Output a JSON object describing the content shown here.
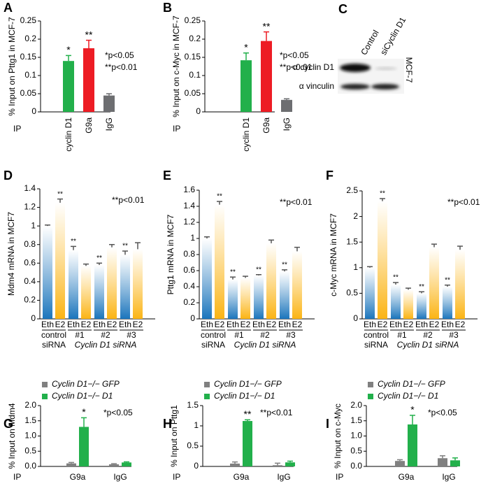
{
  "chart_data": [
    {
      "type": "bar",
      "panel": "A",
      "ylabel": "% Input on Pttg1 in MCF-7",
      "x_prefix": "IP",
      "categories": [
        "cyclin D1",
        "G9a",
        "IgG"
      ],
      "values": [
        0.14,
        0.175,
        0.045
      ],
      "errors": [
        0.015,
        0.022,
        0.005
      ],
      "colors": [
        "#22b04b",
        "#ed1c24",
        "#6d6e71"
      ],
      "annotations": [
        "*",
        "**",
        null
      ],
      "ylim": [
        0,
        0.25
      ],
      "yticks": [
        0,
        0.05,
        0.1,
        0.15,
        0.2,
        0.25
      ],
      "notes": [
        "*p<0.05",
        "**p<0.01"
      ]
    },
    {
      "type": "bar",
      "panel": "B",
      "ylabel": "% Input on c-Myc in MCF-7",
      "x_prefix": "IP",
      "categories": [
        "cyclin D1",
        "G9a",
        "IgG"
      ],
      "values": [
        0.142,
        0.195,
        0.033
      ],
      "errors": [
        0.02,
        0.025,
        0.003
      ],
      "colors": [
        "#22b04b",
        "#ed1c24",
        "#6d6e71"
      ],
      "annotations": [
        "*",
        "**",
        null
      ],
      "ylim": [
        0,
        0.25
      ],
      "yticks": [
        0,
        0.05,
        0.1,
        0.15,
        0.2,
        0.25
      ],
      "notes": [
        "*p<0.05",
        "**p<0.01"
      ]
    },
    {
      "type": "paired_bar",
      "panel": "D",
      "ylabel": "Mdm4 mRNA in MCF7",
      "categories": [
        "Eth",
        "E2",
        "Eth",
        "E2",
        "Eth",
        "E2",
        "Eth",
        "E2"
      ],
      "values": [
        1.0,
        1.25,
        0.74,
        0.57,
        0.58,
        0.77,
        0.69,
        0.75
      ],
      "errors": [
        0.01,
        0.04,
        0.04,
        0.02,
        0.02,
        0.03,
        0.04,
        0.07
      ],
      "colors": [
        "#1b75bc",
        "#fbb414",
        "#1b75bc",
        "#fbb414",
        "#1b75bc",
        "#fbb414",
        "#1b75bc",
        "#fbb414"
      ],
      "annotations": [
        null,
        "**",
        "**",
        null,
        "**",
        null,
        "**",
        null
      ],
      "groups": [
        "control",
        "#1",
        "#2",
        "#3"
      ],
      "group_captions": [
        "siRNA",
        "Cyclin D1 siRNA"
      ],
      "ylim": [
        0,
        1.4
      ],
      "yticks": [
        0,
        0.2,
        0.4,
        0.6,
        0.8,
        1,
        1.2,
        1.4
      ],
      "notes": [
        "**p<0.01"
      ]
    },
    {
      "type": "paired_bar",
      "panel": "E",
      "ylabel": "Pttg1 mRNA in MCF7",
      "categories": [
        "Eth",
        "E2",
        "Eth",
        "E2",
        "Eth",
        "E2",
        "Eth",
        "E2"
      ],
      "values": [
        1.0,
        1.42,
        0.49,
        0.51,
        0.54,
        0.94,
        0.59,
        0.84
      ],
      "errors": [
        0.02,
        0.04,
        0.03,
        0.02,
        0.01,
        0.04,
        0.02,
        0.05
      ],
      "colors": [
        "#1b75bc",
        "#fbb414",
        "#1b75bc",
        "#fbb414",
        "#1b75bc",
        "#fbb414",
        "#1b75bc",
        "#fbb414"
      ],
      "annotations": [
        null,
        "**",
        "**",
        null,
        "**",
        null,
        "**",
        null
      ],
      "groups": [
        "control",
        "#1",
        "#2",
        "#3"
      ],
      "group_captions": [
        "siRNA",
        "Cyclin D1 siRNA"
      ],
      "ylim": [
        0,
        1.6
      ],
      "yticks": [
        0,
        0.2,
        0.4,
        0.6,
        0.8,
        1,
        1.2,
        1.4,
        1.6
      ],
      "notes": [
        "**p<0.01"
      ]
    },
    {
      "type": "paired_bar",
      "panel": "F",
      "ylabel": "c-Myc mRNA in MCF7",
      "categories": [
        "Eth",
        "E2",
        "Eth",
        "E2",
        "Eth",
        "E2",
        "Eth",
        "E2"
      ],
      "values": [
        1.0,
        2.3,
        0.67,
        0.57,
        0.5,
        1.4,
        0.63,
        1.35
      ],
      "errors": [
        0.02,
        0.05,
        0.04,
        0.03,
        0.03,
        0.06,
        0.03,
        0.07
      ],
      "colors": [
        "#1b75bc",
        "#fbb414",
        "#1b75bc",
        "#fbb414",
        "#1b75bc",
        "#fbb414",
        "#1b75bc",
        "#fbb414"
      ],
      "annotations": [
        null,
        "**",
        "**",
        null,
        "**",
        null,
        "**",
        null
      ],
      "groups": [
        "control",
        "#1",
        "#2",
        "#3"
      ],
      "group_captions": [
        "siRNA",
        "Cyclin D1 siRNA"
      ],
      "ylim": [
        0,
        2.5
      ],
      "yticks": [
        0,
        0.5,
        1,
        1.5,
        2,
        2.5
      ],
      "notes": [
        "**p<0.01"
      ]
    },
    {
      "type": "grouped_bar",
      "panel": "G",
      "ylabel": "% Input on Mdm4",
      "x_prefix": "IP",
      "categories": [
        "G9a",
        "IgG"
      ],
      "series": [
        {
          "name": "Cyclin D1−/− GFP",
          "color": "#808080",
          "values": [
            0.1,
            0.07
          ],
          "errors": [
            0.03,
            0.02
          ],
          "annotations": [
            null,
            null
          ]
        },
        {
          "name": "Cyclin D1−/− D1",
          "color": "#22b04b",
          "values": [
            1.3,
            0.13
          ],
          "errors": [
            0.3,
            0.02
          ],
          "annotations": [
            "*",
            null
          ]
        }
      ],
      "ylim": [
        0,
        2.0
      ],
      "yticks": [
        {
          "value": 0,
          "label": "0.0"
        },
        0.5,
        {
          "value": 1,
          "label": "1.0"
        },
        1.5,
        {
          "value": 2,
          "label": "2.0"
        }
      ],
      "notes": [
        "*p<0.05"
      ]
    },
    {
      "type": "grouped_bar",
      "panel": "H",
      "ylabel": "% Input on Pttg1",
      "x_prefix": "IP",
      "categories": [
        "G9a",
        "IgG"
      ],
      "series": [
        {
          "name": "Cyclin D1−/− GFP",
          "color": "#808080",
          "values": [
            0.07,
            0.03
          ],
          "errors": [
            0.04,
            0.05
          ],
          "annotations": [
            null,
            null
          ]
        },
        {
          "name": "Cyclin D1−/− D1",
          "color": "#22b04b",
          "values": [
            1.12,
            0.1
          ],
          "errors": [
            0.03,
            0.03
          ],
          "annotations": [
            "**",
            null
          ]
        }
      ],
      "ylim": [
        0,
        1.5
      ],
      "yticks": [
        0,
        0.5,
        1,
        1.5
      ],
      "notes": [
        "**p<0.01"
      ]
    },
    {
      "type": "grouped_bar",
      "panel": "I",
      "ylabel": "% Input on c-Myc",
      "x_prefix": "IP",
      "categories": [
        "G9a",
        "IgG"
      ],
      "series": [
        {
          "name": "Cyclin D1−/− GFP",
          "color": "#808080",
          "values": [
            0.18,
            0.27
          ],
          "errors": [
            0.04,
            0.08
          ],
          "annotations": [
            null,
            null
          ]
        },
        {
          "name": "Cyclin D1−/− D1",
          "color": "#22b04b",
          "values": [
            1.38,
            0.2
          ],
          "errors": [
            0.3,
            0.08
          ],
          "annotations": [
            "*",
            null
          ]
        }
      ],
      "ylim": [
        0,
        2.0
      ],
      "yticks": [
        {
          "value": 0,
          "label": "0.0"
        },
        0.5,
        {
          "value": 1,
          "label": "1.0"
        },
        1.5,
        {
          "value": 2,
          "label": "2.0"
        }
      ],
      "notes": [
        "*p<0.05"
      ]
    }
  ],
  "blot": {
    "panel": "C",
    "lanes": [
      "Control",
      "siCyclin D1"
    ],
    "bands": [
      "α cyclin D1",
      "α vinculin"
    ],
    "cell_line": "MCF-7"
  }
}
